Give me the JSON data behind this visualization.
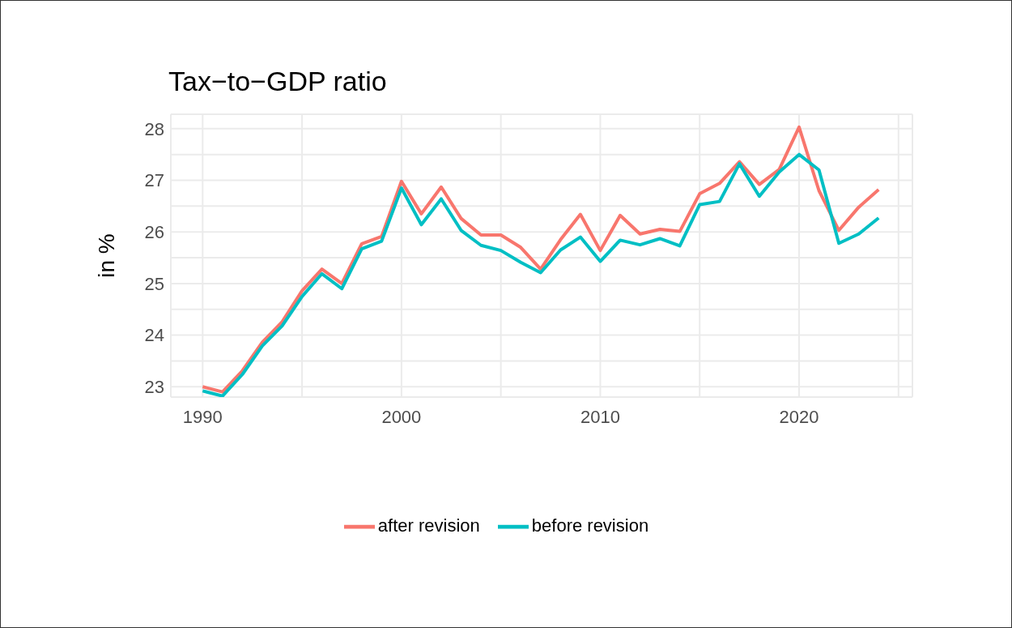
{
  "chart_data": {
    "type": "line",
    "title": "Tax−to−GDP ratio",
    "ylabel": "in %",
    "x": [
      1990,
      1991,
      1992,
      1993,
      1994,
      1995,
      1996,
      1997,
      1998,
      1999,
      2000,
      2001,
      2002,
      2003,
      2004,
      2005,
      2006,
      2007,
      2008,
      2009,
      2010,
      2011,
      2012,
      2013,
      2014,
      2015,
      2016,
      2017,
      2018,
      2019,
      2020,
      2021,
      2022,
      2023,
      2024
    ],
    "series": [
      {
        "name": "after revision",
        "color": "#f8766d",
        "values": [
          23.0,
          22.9,
          23.31,
          23.86,
          24.26,
          24.86,
          25.28,
          25.0,
          25.77,
          25.91,
          26.98,
          26.35,
          26.87,
          26.26,
          25.94,
          25.94,
          25.7,
          25.28,
          25.85,
          26.34,
          25.64,
          26.32,
          25.96,
          26.05,
          26.01,
          26.74,
          26.94,
          27.36,
          26.92,
          27.21,
          28.03,
          26.8,
          26.03,
          26.48,
          26.82
        ]
      },
      {
        "name": "before revision",
        "color": "#00bfc4",
        "values": [
          22.92,
          22.82,
          23.24,
          23.79,
          24.18,
          24.75,
          25.19,
          24.9,
          25.67,
          25.82,
          26.85,
          26.14,
          26.64,
          26.03,
          25.74,
          25.64,
          25.41,
          25.21,
          25.65,
          25.9,
          25.43,
          25.84,
          25.75,
          25.87,
          25.73,
          26.53,
          26.59,
          27.32,
          26.69,
          27.16,
          27.5,
          27.2,
          25.78,
          25.96,
          26.27
        ]
      }
    ],
    "xlim": [
      1988.4,
      2025.7
    ],
    "xticks": [
      1990,
      {
        "value": 1995,
        "label": null
      },
      2000,
      {
        "value": 2005,
        "label": null
      },
      2010,
      {
        "value": 2015,
        "label": null
      },
      2020,
      {
        "value": 2025,
        "label": null
      }
    ],
    "ylim": [
      22.8,
      28.28
    ],
    "yticks": [
      23,
      {
        "value": 23.5,
        "label": null
      },
      24,
      {
        "value": 24.5,
        "label": null
      },
      25,
      {
        "value": 25.5,
        "label": null
      },
      26,
      {
        "value": 26.5,
        "label": null
      },
      27,
      {
        "value": 27.5,
        "label": null
      },
      28
    ],
    "grid": true,
    "legend": "bottom",
    "marker": "none",
    "line_style": "solid"
  }
}
